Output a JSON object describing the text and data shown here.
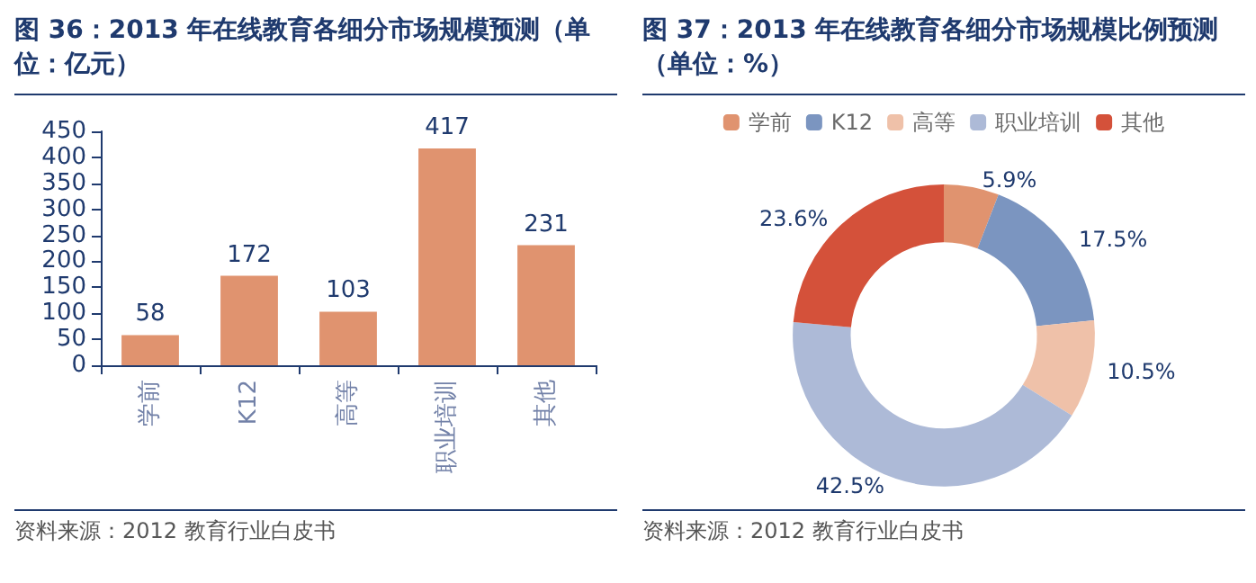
{
  "chart_data": [
    {
      "type": "bar",
      "title": "图 36：2013 年在线教育各细分市场规模预测（单位：亿元）",
      "categories": [
        "学前",
        "K12",
        "高等",
        "职业培训",
        "其他"
      ],
      "values": [
        58,
        172,
        103,
        417,
        231
      ],
      "color": "#e0936f",
      "ylim": [
        0,
        450
      ],
      "yticks": [
        0,
        50,
        100,
        150,
        200,
        250,
        300,
        350,
        400,
        450
      ],
      "grid": false,
      "data_labels": true,
      "legend": false,
      "annotations": [
        "资料来源：2012 教育行业白皮书"
      ]
    },
    {
      "type": "donut",
      "title": "图 37：2013 年在线教育各细分市场规模比例预测（单位：%）",
      "categories": [
        "学前",
        "K12",
        "高等",
        "职业培训",
        "其他"
      ],
      "values": [
        5.9,
        17.5,
        10.5,
        42.5,
        23.6
      ],
      "colors": [
        "#e0936f",
        "#7b95c0",
        "#efc1a9",
        "#adbad7",
        "#d4513a"
      ],
      "value_labels": [
        "5.9%",
        "17.5%",
        "10.5%",
        "42.5%",
        "23.6%"
      ],
      "legend": "top",
      "annotations": [
        "资料来源：2012 教育行业白皮书"
      ]
    }
  ]
}
